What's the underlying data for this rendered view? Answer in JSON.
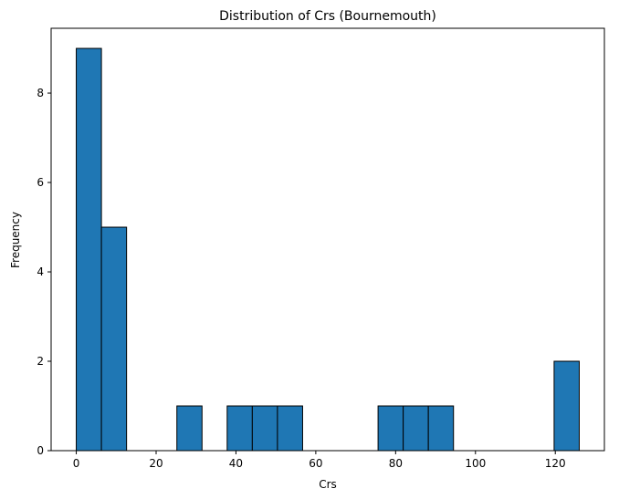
{
  "chart_data": {
    "type": "bar",
    "title": "Distribution of Crs (Bournemouth)",
    "xlabel": "Crs",
    "ylabel": "Frequency",
    "bins": {
      "edges": [
        0,
        6.3,
        12.6,
        18.9,
        25.2,
        31.5,
        37.8,
        44.1,
        50.4,
        56.7,
        63,
        69.3,
        75.6,
        81.9,
        88.2,
        94.5,
        100.8,
        107.1,
        113.4,
        119.7,
        126
      ],
      "counts": [
        9,
        5,
        0,
        0,
        1,
        0,
        1,
        1,
        1,
        0,
        0,
        0,
        1,
        1,
        1,
        0,
        0,
        0,
        0,
        2
      ]
    },
    "xlim": [
      -6.3,
      132.3
    ],
    "ylim": [
      0,
      9.45
    ],
    "xticks": [
      0,
      20,
      40,
      60,
      80,
      100,
      120
    ],
    "yticks": [
      0,
      2,
      4,
      6,
      8
    ],
    "bar_color": "#1f77b4",
    "edge_color": "#000000",
    "grid": false
  }
}
